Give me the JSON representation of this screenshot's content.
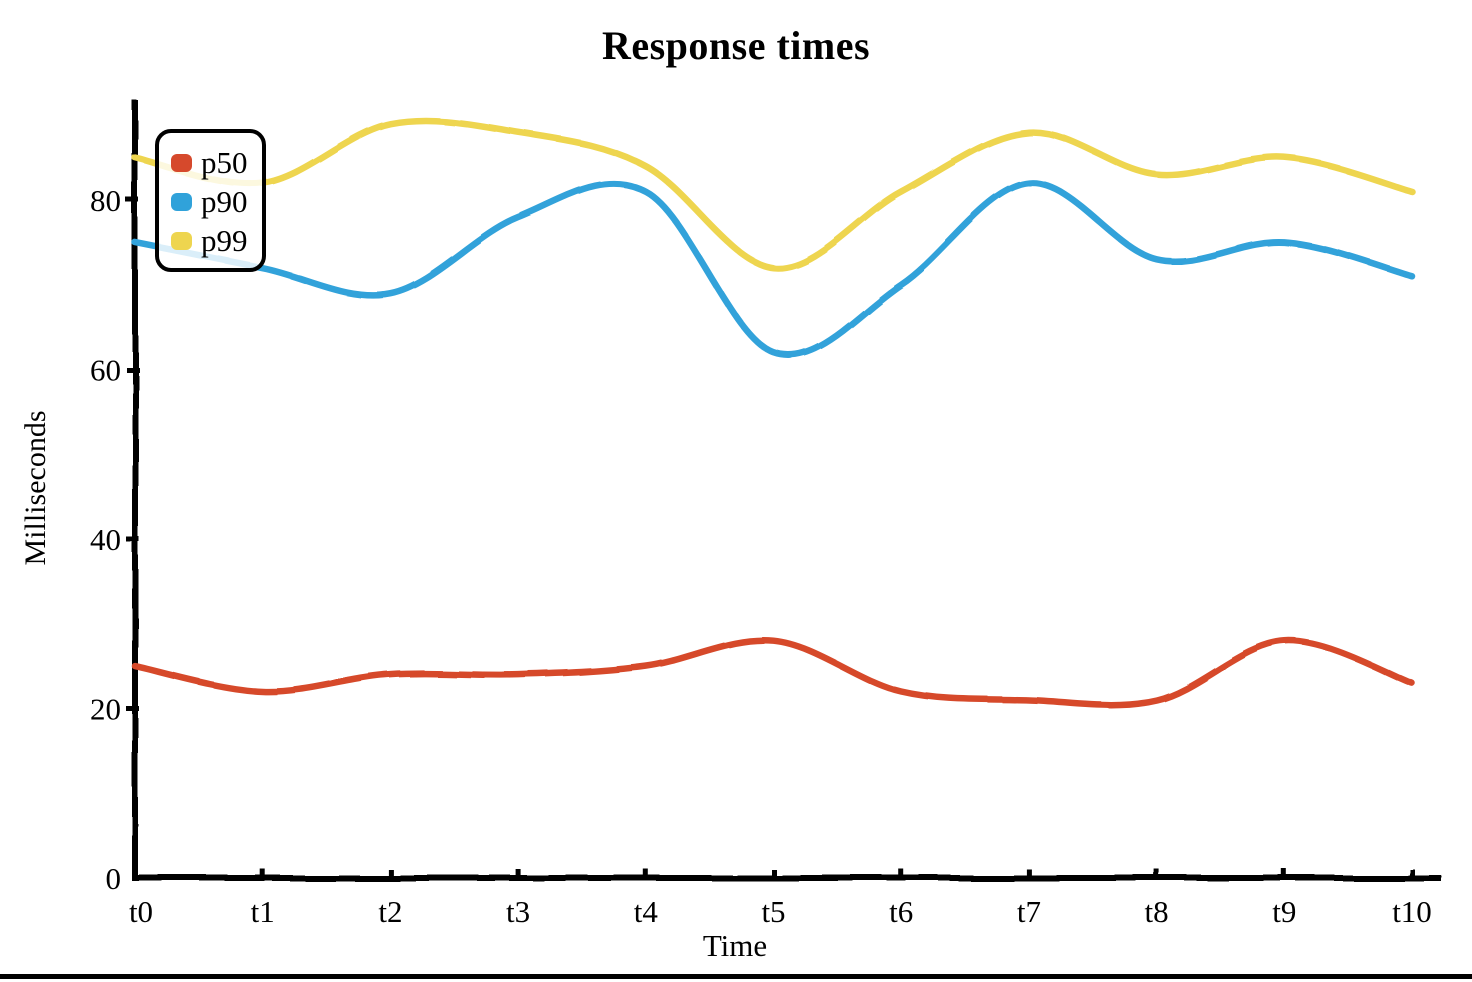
{
  "chart_data": {
    "type": "line",
    "title": "Response times",
    "xlabel": "Time",
    "ylabel": "Milliseconds",
    "categories": [
      "t0",
      "t1",
      "t2",
      "t3",
      "t4",
      "t5",
      "t6",
      "t7",
      "t8",
      "t9",
      "t10"
    ],
    "yticks": [
      0,
      20,
      40,
      60,
      80
    ],
    "ylim": [
      0,
      91
    ],
    "grid": false,
    "legend_position": "top-left",
    "style": "hand-drawn smooth lines, black axes, white background",
    "axis_color": "#000000",
    "series": [
      {
        "name": "p50",
        "color": "#d6492c",
        "values": [
          25,
          22,
          24,
          24,
          25,
          28,
          22,
          21,
          21,
          28,
          23
        ]
      },
      {
        "name": "p90",
        "color": "#30a2da",
        "values": [
          75,
          72,
          69,
          78,
          81,
          62,
          70,
          82,
          73,
          75,
          71
        ]
      },
      {
        "name": "p99",
        "color": "#eed54f",
        "values": [
          85,
          82,
          89,
          88,
          84,
          72,
          81,
          88,
          83,
          85,
          81
        ]
      }
    ]
  }
}
